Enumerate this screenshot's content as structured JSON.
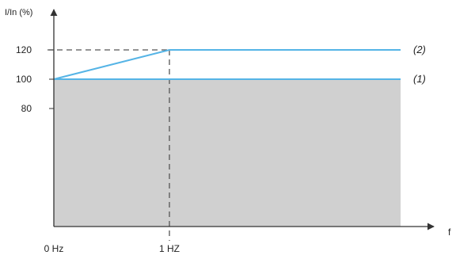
{
  "chart_data": {
    "type": "line",
    "ylabel": "I/In (%)",
    "xlabel": "f",
    "x_ticks": [
      {
        "value": 0,
        "label": "0 Hz"
      },
      {
        "value": 1,
        "label": "1 HZ"
      }
    ],
    "y_ticks": [
      {
        "value": 80,
        "label": "80"
      },
      {
        "value": 100,
        "label": "100"
      },
      {
        "value": 120,
        "label": "120"
      }
    ],
    "xlim": [
      0,
      3
    ],
    "ylim": [
      0,
      125
    ],
    "shaded_region": {
      "x": [
        0,
        3
      ],
      "y": [
        0,
        100
      ]
    },
    "reference_lines": [
      {
        "kind": "horizontal",
        "y": 120,
        "x": [
          0,
          1
        ],
        "style": "dashed"
      },
      {
        "kind": "vertical",
        "x": 1,
        "y": [
          0,
          120
        ],
        "style": "dashed"
      }
    ],
    "series": [
      {
        "name": "(1)",
        "x": [
          0,
          3
        ],
        "y": [
          100,
          100
        ]
      },
      {
        "name": "(2)",
        "x": [
          0,
          1,
          3
        ],
        "y": [
          100,
          120,
          120
        ]
      }
    ]
  },
  "colors": {
    "series": "#55b4e6",
    "shading": "#d0d0d0",
    "axis": "#333333",
    "dashed": "#555555"
  }
}
